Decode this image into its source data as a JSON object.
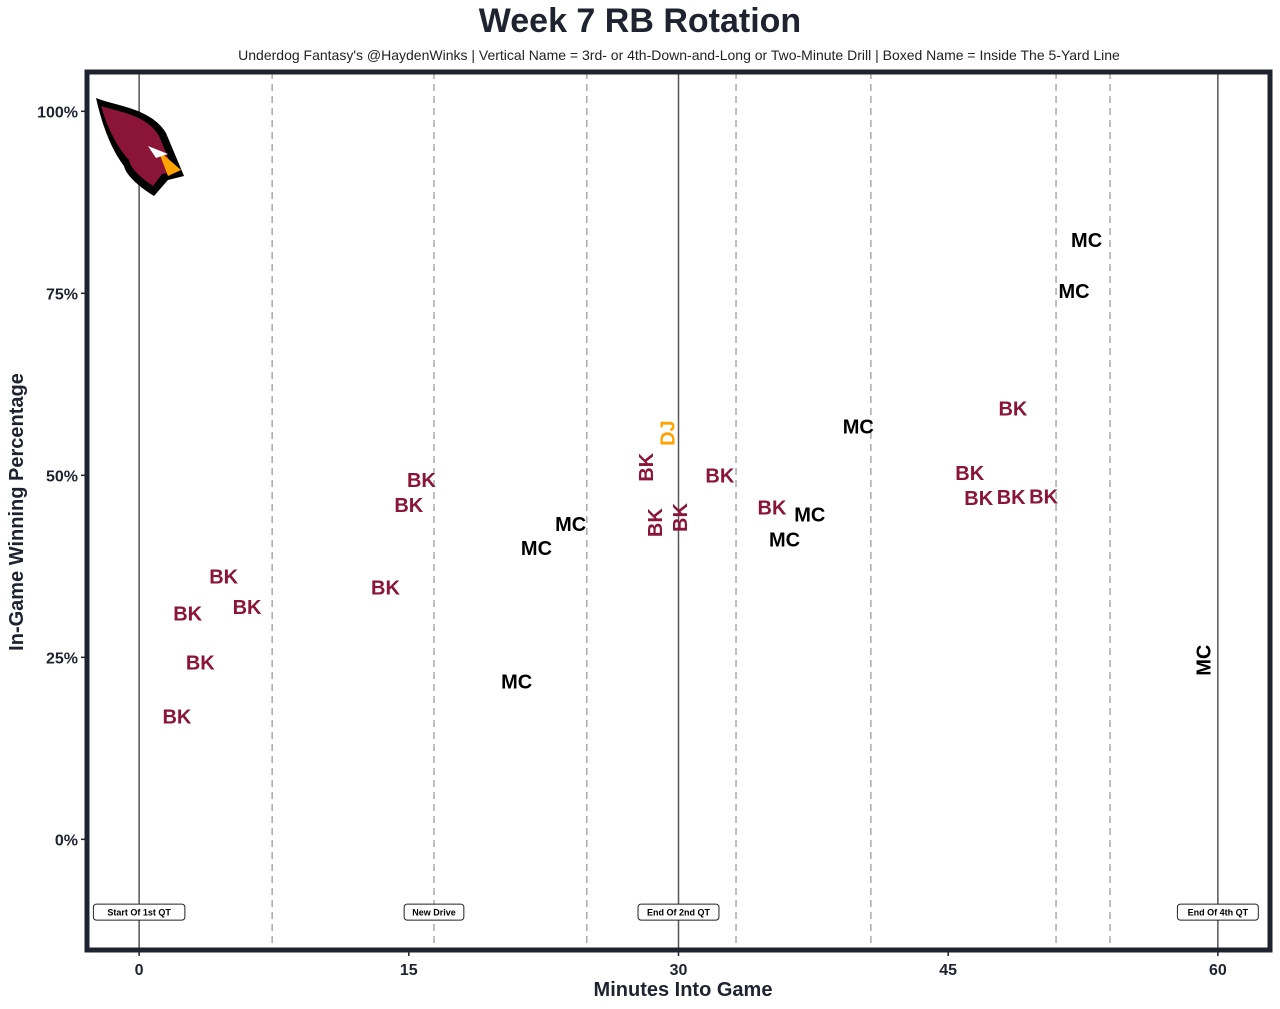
{
  "chart_data": {
    "type": "scatter",
    "title": "Week 7 RB Rotation",
    "subtitle": "Underdog Fantasy's @HaydenWinks | Vertical Name = 3rd- or 4th-Down-and-Long or Two-Minute Drill | Boxed Name = Inside The 5-Yard Line",
    "xlabel": "Minutes Into Game",
    "ylabel": "In-Game Winning Percentage",
    "xlim": [
      -2.9,
      62.9
    ],
    "ylim": [
      -15.2,
      105.4
    ],
    "xticks": [
      {
        "v": 0,
        "label": "0"
      },
      {
        "v": 15,
        "label": "15"
      },
      {
        "v": 30,
        "label": "30"
      },
      {
        "v": 45,
        "label": "45"
      },
      {
        "v": 60,
        "label": "60"
      }
    ],
    "yticks": [
      {
        "v": 0,
        "label": "0%"
      },
      {
        "v": 25,
        "label": "25%"
      },
      {
        "v": 50,
        "label": "50%"
      },
      {
        "v": 75,
        "label": "75%"
      },
      {
        "v": 100,
        "label": "100%"
      }
    ],
    "colors": {
      "BK": "#8a1538",
      "MC": "#000000",
      "DJ": "#ffa300"
    },
    "solid_lines": [
      0,
      30,
      60
    ],
    "dashed_lines": [
      7.4,
      16.4,
      24.9,
      33.2,
      40.7,
      51.0,
      54.0
    ],
    "annotations": [
      {
        "x": 0,
        "y": -10,
        "text": "Start Of 1st QT"
      },
      {
        "x": 16.4,
        "y": -10,
        "text": "New Drive"
      },
      {
        "x": 30,
        "y": -10,
        "text": "End Of 2nd QT"
      },
      {
        "x": 60,
        "y": -10,
        "text": "End Of 4th QT"
      }
    ],
    "points": [
      {
        "x": 2.1,
        "y": 16.9,
        "label": "BK",
        "vertical": false
      },
      {
        "x": 3.4,
        "y": 24.3,
        "label": "BK",
        "vertical": false
      },
      {
        "x": 2.7,
        "y": 31.0,
        "label": "BK",
        "vertical": false
      },
      {
        "x": 4.7,
        "y": 36.1,
        "label": "BK",
        "vertical": false
      },
      {
        "x": 6.0,
        "y": 31.9,
        "label": "BK",
        "vertical": false
      },
      {
        "x": 13.7,
        "y": 34.6,
        "label": "BK",
        "vertical": false
      },
      {
        "x": 15.0,
        "y": 45.9,
        "label": "BK",
        "vertical": false
      },
      {
        "x": 15.7,
        "y": 48.2,
        "label": "BK",
        "vertical": false
      },
      {
        "x": 21.0,
        "y": 21.7,
        "label": "MC",
        "vertical": false
      },
      {
        "x": 22.1,
        "y": 40.0,
        "label": "MC",
        "vertical": false
      },
      {
        "x": 24.0,
        "y": 43.3,
        "label": "MC",
        "vertical": false
      },
      {
        "x": 28.2,
        "y": 51.1,
        "label": "BK",
        "vertical": true
      },
      {
        "x": 28.7,
        "y": 43.5,
        "label": "BK",
        "vertical": true
      },
      {
        "x": 29.5,
        "y": 44.2,
        "label": "BK",
        "vertical": true
      },
      {
        "x": 29.4,
        "y": 55.8,
        "label": "DJ",
        "vertical": true
      },
      {
        "x": 32.3,
        "y": 50.0,
        "label": "BK",
        "vertical": false
      },
      {
        "x": 35.2,
        "y": 45.6,
        "label": "BK",
        "vertical": false
      },
      {
        "x": 35.9,
        "y": 41.2,
        "label": "MC",
        "vertical": false
      },
      {
        "x": 37.3,
        "y": 44.2,
        "label": "MC",
        "vertical": false
      },
      {
        "x": 40.0,
        "y": 56.7,
        "label": "MC",
        "vertical": false
      },
      {
        "x": 46.2,
        "y": 50.3,
        "label": "BK",
        "vertical": false
      },
      {
        "x": 46.7,
        "y": 49.5,
        "label": "BK",
        "vertical": false
      },
      {
        "x": 47.4,
        "y": 47.0,
        "label": "BK",
        "vertical": false
      },
      {
        "x": 48.6,
        "y": 59.2,
        "label": "BK",
        "vertical": false
      },
      {
        "x": 49.3,
        "y": 47.1,
        "label": "BK",
        "vertical": false
      },
      {
        "x": 52.0,
        "y": 75.3,
        "label": "MC",
        "vertical": false
      },
      {
        "x": 52.7,
        "y": 82.3,
        "label": "MC",
        "vertical": false
      },
      {
        "x": 59.2,
        "y": 24.6,
        "label": "MC",
        "vertical": true
      }
    ]
  }
}
